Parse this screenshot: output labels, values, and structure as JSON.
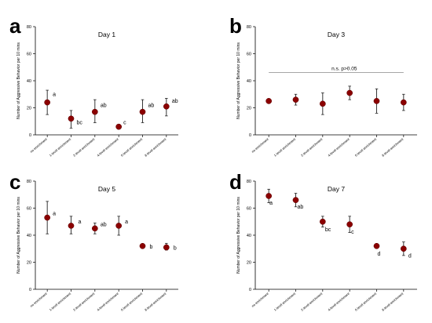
{
  "chart_data": [
    {
      "type": "scatter",
      "panel_label": "a",
      "title": "Day 1",
      "ylabel": "Number of Aggressive Behavior per 10 mins",
      "ylim": [
        0,
        80
      ],
      "yticks": [
        0,
        20,
        40,
        60,
        80
      ],
      "categories": [
        "no enrichment",
        "1-level enrichment",
        "2-level enrichment",
        "4-level enrichment",
        "6-level enrichment",
        "8-level enrichment"
      ],
      "values": [
        24,
        12,
        17,
        6,
        17,
        21
      ],
      "error_low": [
        15,
        5,
        9,
        5,
        9,
        14
      ],
      "error_high": [
        33,
        18,
        26,
        7,
        26,
        27
      ],
      "significance": [
        "a",
        "bc",
        "ab",
        "c",
        "ab",
        "ab"
      ],
      "marker_color": "#8b0000"
    },
    {
      "type": "scatter",
      "panel_label": "b",
      "title": "Day 3",
      "ylabel": "Number of Aggressive Behavior per 10 mins",
      "ylim": [
        0,
        80
      ],
      "yticks": [
        0,
        20,
        40,
        60,
        80
      ],
      "categories": [
        "no enrichment",
        "1-level enrichment",
        "2-level enrichment",
        "4-level enrichment",
        "6-level enrichment",
        "8-level enrichment"
      ],
      "values": [
        25,
        26,
        23,
        31,
        25,
        24
      ],
      "error_low": [
        24,
        22,
        15,
        26,
        16,
        18
      ],
      "error_high": [
        26,
        30,
        31,
        36,
        34,
        30
      ],
      "significance": [
        "",
        "",
        "",
        "",
        "",
        ""
      ],
      "annotation": "n.s.  p>0.05",
      "annotation_line_y": 46,
      "marker_color": "#8b0000"
    },
    {
      "type": "scatter",
      "panel_label": "c",
      "title": "Day 5",
      "ylabel": "Number of Aggressive Behavior per 10 mins",
      "ylim": [
        0,
        80
      ],
      "yticks": [
        0,
        20,
        40,
        60,
        80
      ],
      "categories": [
        "no enrichment",
        "1-level enrichment",
        "2-level enrichment",
        "4-level enrichment",
        "6-level enrichment",
        "8-level enrichment"
      ],
      "values": [
        53,
        47,
        45,
        47,
        32,
        31
      ],
      "error_low": [
        41,
        41,
        41,
        40,
        31,
        29
      ],
      "error_high": [
        65,
        54,
        49,
        54,
        33,
        34
      ],
      "significance": [
        "a",
        "a",
        "ab",
        "a",
        "b",
        "b"
      ],
      "marker_color": "#8b0000"
    },
    {
      "type": "scatter",
      "panel_label": "d",
      "title": "Day 7",
      "ylabel": "Number of Aggressive Behavior per 10 mins",
      "ylim": [
        0,
        80
      ],
      "yticks": [
        0,
        20,
        40,
        60,
        80
      ],
      "categories": [
        "no enrichment",
        "1-level enrichment",
        "2-level enrichment",
        "4-level enrichment",
        "6-level enrichment",
        "8-level enrichment"
      ],
      "values": [
        69,
        66,
        50,
        48,
        32,
        30
      ],
      "error_low": [
        64,
        61,
        46,
        42,
        31,
        25
      ],
      "error_high": [
        74,
        71,
        54,
        54,
        33,
        35
      ],
      "significance": [
        "a",
        "ab",
        "bc",
        "c",
        "d",
        "d"
      ],
      "marker_color": "#8b0000"
    }
  ]
}
